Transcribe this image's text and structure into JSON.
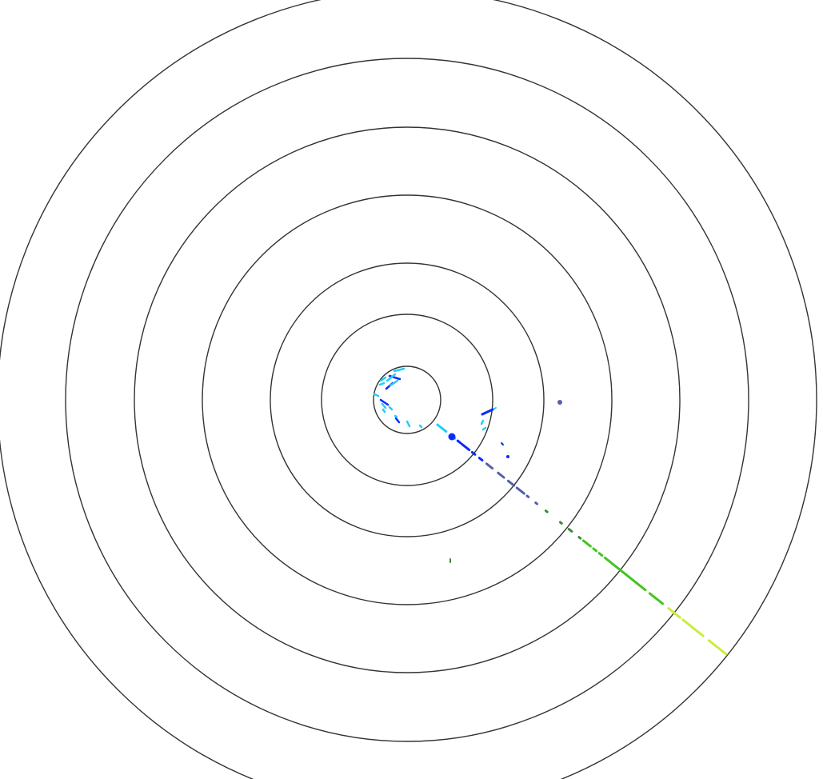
{
  "display": {
    "ring_count": 7,
    "ring_color": "#333333",
    "background": "#ffffff"
  },
  "hit_colors": {
    "cyan": "#22ccff",
    "blue": "#0a2bff",
    "slate": "#5560a8",
    "dark_green": "#3a8a3a",
    "green": "#44c422",
    "yellow_green": "#c8ee3a"
  }
}
